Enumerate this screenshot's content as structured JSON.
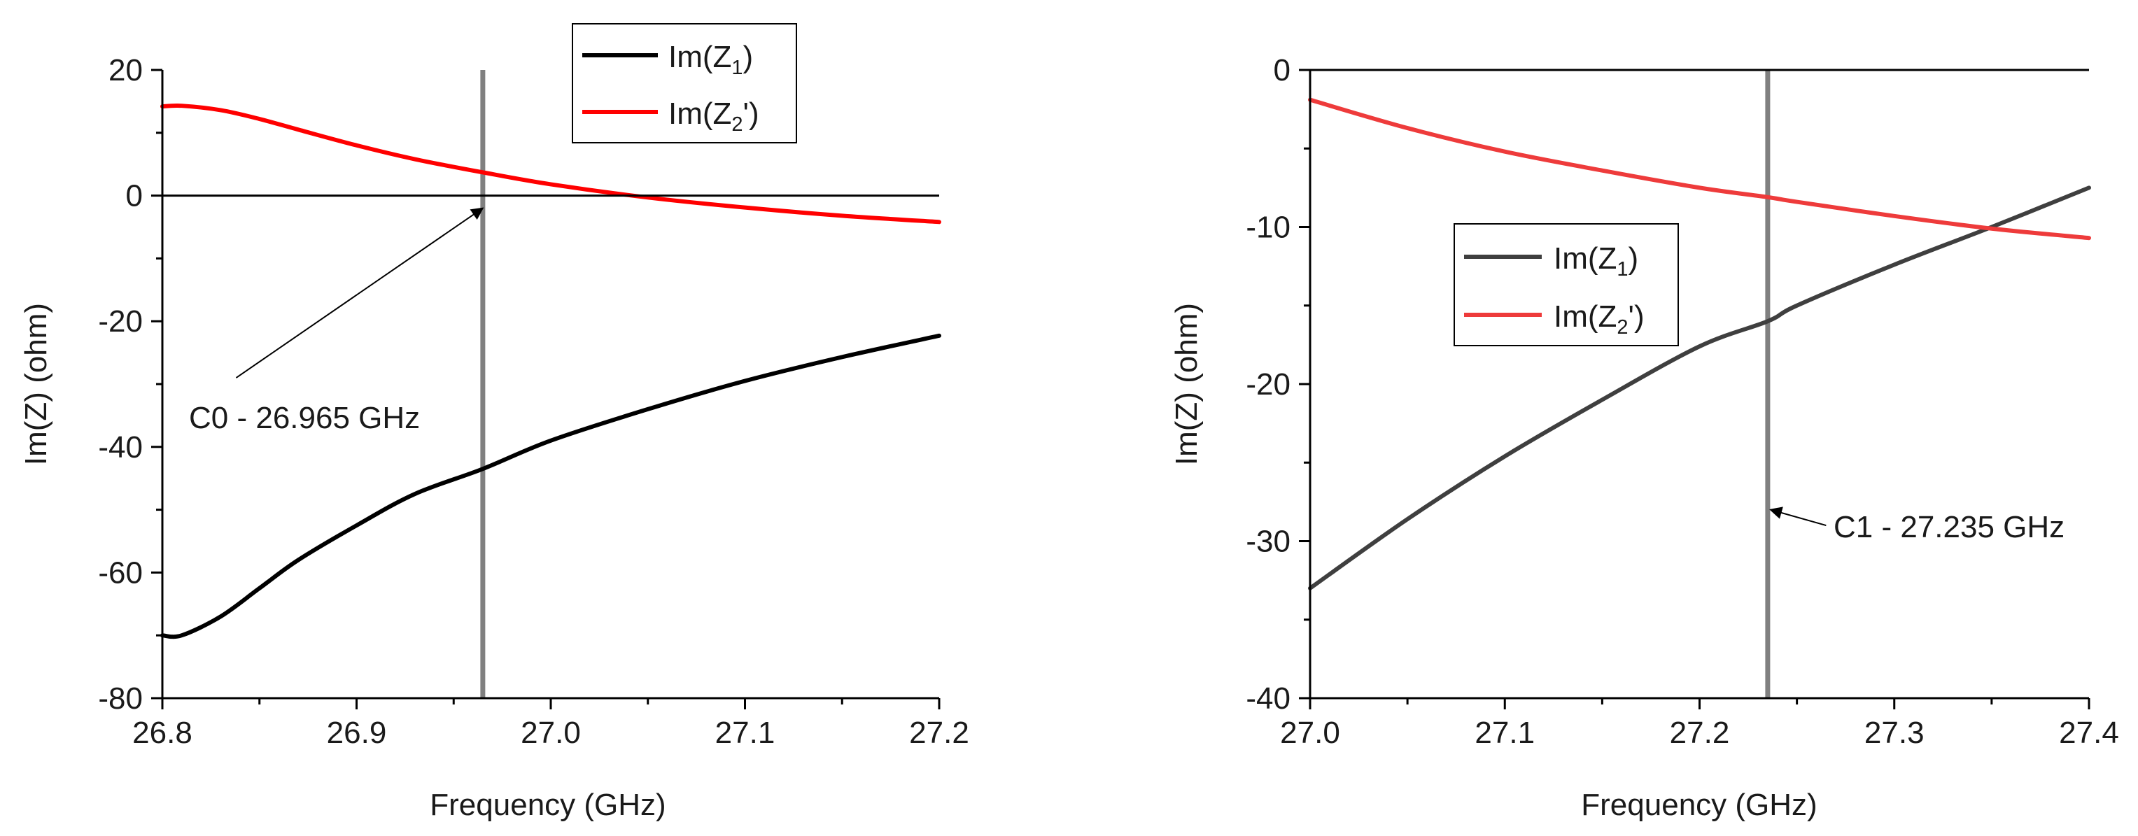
{
  "colors": {
    "axis": "#000000",
    "marker": "#808080",
    "left_z1": "#000000",
    "left_z2": "#ff0000",
    "right_z1": "#3f3f3f",
    "right_z2": "#ee3b3b"
  },
  "chart_data": [
    {
      "type": "line",
      "xlabel": "Frequency (GHz)",
      "ylabel": "Im(Z) (ohm)",
      "xlim": [
        26.8,
        27.2
      ],
      "ylim": [
        -80,
        20
      ],
      "xticks": [
        26.8,
        26.9,
        27.0,
        27.1,
        27.2
      ],
      "xtick_labels": [
        "26.8",
        "26.9",
        "27.0",
        "27.1",
        "27.2"
      ],
      "yticks": [
        -80,
        -60,
        -40,
        -20,
        0,
        20
      ],
      "ytick_labels": [
        "-80",
        "-60",
        "-40",
        "-20",
        "0",
        "20"
      ],
      "zero_line": 0,
      "legend_position": "top-right",
      "series": [
        {
          "name": "Im(Z1)",
          "label_main": "Im(Z",
          "label_sub": "1",
          "label_tail": ")",
          "x": [
            26.8,
            26.81,
            26.83,
            26.85,
            26.87,
            26.9,
            26.93,
            26.965,
            27.0,
            27.05,
            27.1,
            27.15,
            27.2
          ],
          "y": [
            -70,
            -70,
            -67,
            -62.5,
            -58,
            -52.5,
            -47.5,
            -43.5,
            -39,
            -34,
            -29.5,
            -25.7,
            -22.3
          ]
        },
        {
          "name": "Im(Z2')",
          "label_main": "Im(Z",
          "label_sub": "2",
          "label_tail": "')",
          "x": [
            26.8,
            26.81,
            26.83,
            26.85,
            26.87,
            26.9,
            26.93,
            26.965,
            27.0,
            27.05,
            27.1,
            27.15,
            27.2
          ],
          "y": [
            14.2,
            14.3,
            13.6,
            12.2,
            10.5,
            8,
            5.8,
            3.7,
            1.8,
            -0.3,
            -1.9,
            -3.2,
            -4.2
          ]
        }
      ],
      "marker_line": {
        "x": 26.965,
        "label": "C0 - 26.965 GHz",
        "arrow_tip": {
          "x": 26.965,
          "y": -2
        },
        "arrow_tail": {
          "x": 26.838,
          "y": -29
        }
      }
    },
    {
      "type": "line",
      "xlabel": "Frequency (GHz)",
      "ylabel": "Im(Z) (ohm)",
      "xlim": [
        27.0,
        27.4
      ],
      "ylim": [
        -40,
        0
      ],
      "xticks": [
        27.0,
        27.1,
        27.2,
        27.3,
        27.4
      ],
      "xtick_labels": [
        "27.0",
        "27.1",
        "27.2",
        "27.3",
        "27.4"
      ],
      "yticks": [
        -40,
        -30,
        -20,
        -10,
        0
      ],
      "ytick_labels": [
        "-40",
        "-30",
        "-20",
        "-10",
        "0"
      ],
      "top_line": 0,
      "legend_position": "center-left",
      "series": [
        {
          "name": "Im(Z1)",
          "label_main": "Im(Z",
          "label_sub": "1",
          "label_tail": ")",
          "x": [
            27.0,
            27.05,
            27.1,
            27.15,
            27.2,
            27.235,
            27.25,
            27.3,
            27.35,
            27.4
          ],
          "y": [
            -33,
            -28.6,
            -24.6,
            -21,
            -17.6,
            -16,
            -15,
            -12.4,
            -10,
            -7.5
          ]
        },
        {
          "name": "Im(Z2')",
          "label_main": "Im(Z",
          "label_sub": "2",
          "label_tail": "')",
          "x": [
            27.0,
            27.05,
            27.1,
            27.15,
            27.2,
            27.235,
            27.25,
            27.3,
            27.35,
            27.4
          ],
          "y": [
            -1.9,
            -3.7,
            -5.2,
            -6.4,
            -7.5,
            -8.1,
            -8.4,
            -9.3,
            -10.1,
            -10.7
          ]
        }
      ],
      "marker_line": {
        "x": 27.235,
        "label": "C1 - 27.235 GHz",
        "arrow_tip": {
          "x": 27.235,
          "y": -28
        },
        "arrow_tail": {
          "x": 27.265,
          "y": -29
        }
      }
    }
  ]
}
